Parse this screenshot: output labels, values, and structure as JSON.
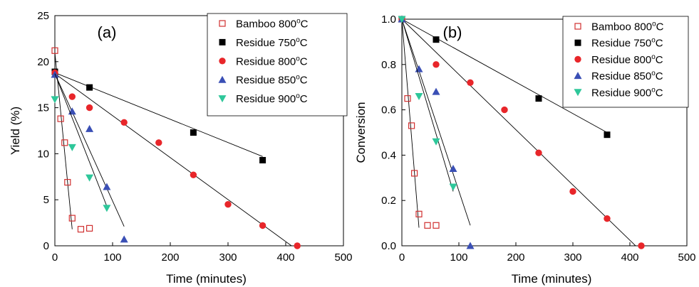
{
  "chart_data": [
    {
      "type": "scatter",
      "panel_label": "(a)",
      "xlabel": "Time (minutes)",
      "ylabel": "Yield (%)",
      "xlim": [
        0,
        500
      ],
      "ylim": [
        0,
        25
      ],
      "xticks": [
        0,
        100,
        200,
        300,
        400,
        500
      ],
      "yticks": [
        0,
        5,
        10,
        15,
        20,
        25
      ],
      "grid": false,
      "legend_position": "top-right",
      "series": [
        {
          "name": "Bamboo 800",
          "temp_sup": "o",
          "temp_unit": "C",
          "marker": "open-square",
          "color": "#d03030",
          "x": [
            0,
            10,
            17,
            22,
            30,
            45,
            60
          ],
          "y": [
            21.2,
            13.8,
            11.2,
            6.9,
            3.0,
            1.8,
            1.9
          ],
          "fit": {
            "x": [
              0,
              30
            ],
            "y": [
              21.0,
              1.8
            ]
          }
        },
        {
          "name": "Residue 750",
          "temp_sup": "o",
          "temp_unit": "C",
          "marker": "filled-square",
          "color": "#000000",
          "x": [
            0,
            60,
            240,
            360
          ],
          "y": [
            18.9,
            17.2,
            12.3,
            9.3
          ],
          "fit": {
            "x": [
              0,
              360
            ],
            "y": [
              18.8,
              9.7
            ]
          }
        },
        {
          "name": "Residue 800",
          "temp_sup": "o",
          "temp_unit": "C",
          "marker": "filled-circle",
          "color": "#e8262a",
          "x": [
            0,
            30,
            60,
            120,
            180,
            240,
            300,
            360,
            420
          ],
          "y": [
            18.8,
            16.2,
            15.0,
            13.4,
            11.2,
            7.7,
            4.5,
            2.2,
            0.0
          ],
          "fit": {
            "x": [
              0,
              410
            ],
            "y": [
              18.7,
              0.0
            ]
          }
        },
        {
          "name": "Residue 850",
          "temp_sup": "o",
          "temp_unit": "C",
          "marker": "filled-triangle-up",
          "color": "#3a4fb5",
          "x": [
            0,
            30,
            60,
            90,
            120
          ],
          "y": [
            18.6,
            14.6,
            12.7,
            6.4,
            0.7
          ],
          "fit": {
            "x": [
              0,
              120
            ],
            "y": [
              18.7,
              2.1
            ]
          }
        },
        {
          "name": "Residue 900",
          "temp_sup": "o",
          "temp_unit": "C",
          "marker": "filled-triangle-down",
          "color": "#2ec79a",
          "x": [
            0,
            30,
            60,
            90
          ],
          "y": [
            15.9,
            10.7,
            7.4,
            4.1
          ],
          "fit": {
            "x": [
              0,
              90
            ],
            "y": [
              18.7,
              4.3
            ]
          }
        }
      ]
    },
    {
      "type": "scatter",
      "panel_label": "(b)",
      "xlabel": "Time (minutes)",
      "ylabel": "Conversion",
      "xlim": [
        0,
        500
      ],
      "ylim": [
        0.0,
        1.0
      ],
      "xticks": [
        0,
        100,
        200,
        300,
        400,
        500
      ],
      "yticks": [
        0.0,
        0.2,
        0.4,
        0.6,
        0.8,
        1.0
      ],
      "grid": false,
      "legend_position": "top-right",
      "series": [
        {
          "name": "Bamboo 800",
          "temp_sup": "o",
          "temp_unit": "C",
          "marker": "open-square",
          "color": "#d03030",
          "x": [
            0,
            10,
            17,
            22,
            30,
            45,
            60
          ],
          "y": [
            1.0,
            0.65,
            0.53,
            0.32,
            0.14,
            0.09,
            0.09
          ],
          "fit": {
            "x": [
              0,
              30
            ],
            "y": [
              1.0,
              0.08
            ]
          }
        },
        {
          "name": "Residue 750",
          "temp_sup": "o",
          "temp_unit": "C",
          "marker": "filled-square",
          "color": "#000000",
          "x": [
            0,
            60,
            240,
            360
          ],
          "y": [
            1.0,
            0.91,
            0.65,
            0.49
          ],
          "fit": {
            "x": [
              0,
              360
            ],
            "y": [
              1.0,
              0.5
            ]
          }
        },
        {
          "name": "Residue 800",
          "temp_sup": "o",
          "temp_unit": "C",
          "marker": "filled-circle",
          "color": "#e8262a",
          "x": [
            0,
            60,
            120,
            180,
            240,
            300,
            360,
            420
          ],
          "y": [
            1.0,
            0.8,
            0.72,
            0.6,
            0.41,
            0.24,
            0.12,
            0.0
          ],
          "fit": {
            "x": [
              0,
              410
            ],
            "y": [
              1.0,
              0.0
            ]
          }
        },
        {
          "name": "Residue 850",
          "temp_sup": "o",
          "temp_unit": "C",
          "marker": "filled-triangle-up",
          "color": "#3a4fb5",
          "x": [
            0,
            30,
            60,
            90,
            120
          ],
          "y": [
            1.0,
            0.78,
            0.68,
            0.34,
            0.0
          ],
          "fit": {
            "x": [
              0,
              120
            ],
            "y": [
              1.0,
              0.09
            ]
          }
        },
        {
          "name": "Residue 900",
          "temp_sup": "o",
          "temp_unit": "C",
          "marker": "filled-triangle-down",
          "color": "#2ec79a",
          "x": [
            0,
            30,
            60,
            90
          ],
          "y": [
            1.0,
            0.66,
            0.46,
            0.26
          ],
          "fit": {
            "x": [
              0,
              90
            ],
            "y": [
              1.0,
              0.24
            ]
          }
        }
      ]
    }
  ]
}
